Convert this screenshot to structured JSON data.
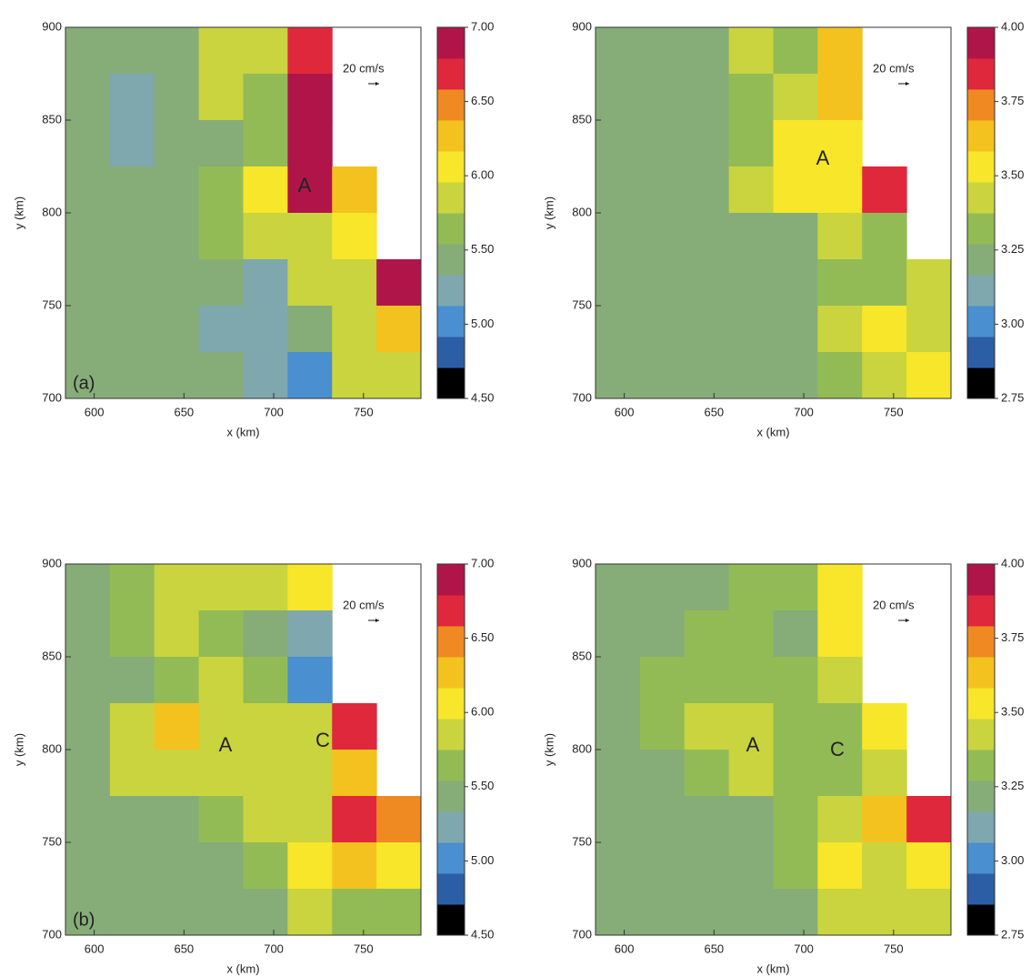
{
  "chart_data": [
    {
      "type": "contour",
      "panel_label": "(a)",
      "annotations": [
        "A"
      ],
      "reference": "20 cm/s",
      "xlabel": "x (km)",
      "ylabel": "y (km)",
      "xlim": [
        584,
        782
      ],
      "xticks": [
        600,
        650,
        700,
        750
      ],
      "ylim": [
        700,
        900
      ],
      "yticks": [
        700,
        750,
        800,
        850,
        900
      ],
      "z": [
        [
          5.4,
          5.5,
          5.5,
          5.9,
          5.8,
          6.7,
          null,
          null
        ],
        [
          5.5,
          5.3,
          5.4,
          5.9,
          5.7,
          6.8,
          null,
          null
        ],
        [
          5.5,
          5.3,
          5.5,
          5.5,
          5.6,
          6.8,
          null,
          null
        ],
        [
          5.4,
          5.5,
          5.5,
          5.6,
          6.1,
          6.8,
          6.3,
          null
        ],
        [
          5.5,
          5.5,
          5.4,
          5.6,
          5.9,
          5.8,
          6.1,
          null
        ],
        [
          5.5,
          5.5,
          5.5,
          5.4,
          5.3,
          5.9,
          5.8,
          6.8
        ],
        [
          5.5,
          5.5,
          5.5,
          5.3,
          5.2,
          5.5,
          5.9,
          6.2
        ],
        [
          5.5,
          5.5,
          5.5,
          5.4,
          5.3,
          5.1,
          5.9,
          5.9
        ]
      ],
      "colorbar": {
        "lim": [
          4.5,
          7
        ],
        "ticks": [
          {
            "value": 4.5,
            "label": "4.50"
          },
          {
            "value": 5,
            "label": "5.00"
          },
          {
            "value": 5.5,
            "label": "5.50"
          },
          {
            "value": 6,
            "label": "6.00"
          },
          {
            "value": 6.5,
            "label": "6.50"
          },
          {
            "value": 7,
            "label": "7.00"
          }
        ],
        "colors": [
          "#000000",
          "#2c5ea6",
          "#4a8fcf",
          "#7ea7ae",
          "#86ad78",
          "#93bb55",
          "#c9d43e",
          "#f7e629",
          "#f4c21e",
          "#ef8a22",
          "#e0283c",
          "#b0154a"
        ]
      }
    },
    {
      "type": "contour",
      "annotations": [
        "A"
      ],
      "reference": "20 cm/s",
      "xlabel": "x (km)",
      "ylabel": "y (km)",
      "xlim": [
        584,
        782
      ],
      "xticks": [
        600,
        650,
        700,
        750
      ],
      "ylim": [
        700,
        900
      ],
      "yticks": [
        700,
        750,
        800,
        850,
        900
      ],
      "z": [
        [
          3.2,
          3.2,
          3.2,
          3.4,
          3.3,
          3.6,
          null,
          null
        ],
        [
          3.2,
          3.2,
          3.2,
          3.3,
          3.4,
          3.6,
          null,
          null
        ],
        [
          3.2,
          3.2,
          3.2,
          3.3,
          3.5,
          3.5,
          null,
          null
        ],
        [
          3.2,
          3.2,
          3.2,
          3.4,
          3.5,
          3.5,
          3.8,
          null
        ],
        [
          3.2,
          3.2,
          3.2,
          3.2,
          3.2,
          3.4,
          3.3,
          null
        ],
        [
          3.2,
          3.2,
          3.2,
          3.2,
          3.2,
          3.3,
          3.3,
          3.4
        ],
        [
          3.2,
          3.2,
          3.2,
          3.2,
          3.2,
          3.4,
          3.5,
          3.4
        ],
        [
          3.2,
          3.2,
          3.2,
          3.2,
          3.2,
          3.3,
          3.4,
          3.5
        ]
      ],
      "colorbar": {
        "lim": [
          2.75,
          4
        ],
        "ticks": [
          {
            "value": 2.75,
            "label": "2.75"
          },
          {
            "value": 3,
            "label": "3.00"
          },
          {
            "value": 3.25,
            "label": "3.25"
          },
          {
            "value": 3.5,
            "label": "3.50"
          },
          {
            "value": 3.75,
            "label": "3.75"
          },
          {
            "value": 4,
            "label": "4.00"
          }
        ],
        "colors": [
          "#000000",
          "#2c5ea6",
          "#4a8fcf",
          "#7ea7ae",
          "#86ad78",
          "#93bb55",
          "#c9d43e",
          "#f7e629",
          "#f4c21e",
          "#ef8a22",
          "#e0283c",
          "#b0154a"
        ]
      }
    },
    {
      "type": "contour",
      "panel_label": "(b)",
      "annotations": [
        "A",
        "C"
      ],
      "reference": "20 cm/s",
      "xlabel": "x (km)",
      "ylabel": "y (km)",
      "xlim": [
        584,
        782
      ],
      "xticks": [
        600,
        650,
        700,
        750
      ],
      "ylim": [
        700,
        900
      ],
      "yticks": [
        700,
        750,
        800,
        850,
        900
      ],
      "z": [
        [
          5.5,
          5.6,
          5.8,
          5.8,
          5.8,
          6.0,
          null,
          null
        ],
        [
          5.4,
          5.7,
          5.8,
          5.6,
          5.5,
          5.3,
          null,
          null
        ],
        [
          5.5,
          5.4,
          5.6,
          5.8,
          5.6,
          5.0,
          null,
          null
        ],
        [
          5.5,
          5.9,
          6.2,
          5.9,
          5.8,
          5.8,
          6.7,
          null
        ],
        [
          5.5,
          5.8,
          5.9,
          5.9,
          5.8,
          5.9,
          6.3,
          null
        ],
        [
          5.5,
          5.5,
          5.5,
          5.6,
          5.8,
          5.9,
          6.7,
          6.5
        ],
        [
          5.5,
          5.5,
          5.5,
          5.5,
          5.6,
          6.0,
          6.3,
          6.0
        ],
        [
          5.5,
          5.5,
          5.5,
          5.5,
          5.4,
          5.8,
          5.7,
          5.6
        ]
      ],
      "colorbar": {
        "lim": [
          4.5,
          7
        ],
        "ticks": [
          {
            "value": 4.5,
            "label": "4.50"
          },
          {
            "value": 5,
            "label": "5.00"
          },
          {
            "value": 5.5,
            "label": "5.50"
          },
          {
            "value": 6,
            "label": "6.00"
          },
          {
            "value": 6.5,
            "label": "6.50"
          },
          {
            "value": 7,
            "label": "7.00"
          }
        ],
        "colors": [
          "#000000",
          "#2c5ea6",
          "#4a8fcf",
          "#7ea7ae",
          "#86ad78",
          "#93bb55",
          "#c9d43e",
          "#f7e629",
          "#f4c21e",
          "#ef8a22",
          "#e0283c",
          "#b0154a"
        ]
      }
    },
    {
      "type": "contour",
      "annotations": [
        "A",
        "C"
      ],
      "reference": "20 cm/s",
      "xlabel": "x (km)",
      "ylabel": "y (km)",
      "xlim": [
        584,
        782
      ],
      "xticks": [
        600,
        650,
        700,
        750
      ],
      "ylim": [
        700,
        900
      ],
      "yticks": [
        700,
        750,
        800,
        850,
        900
      ],
      "z": [
        [
          3.2,
          3.2,
          3.2,
          3.3,
          3.3,
          3.5,
          null,
          null
        ],
        [
          3.2,
          3.2,
          3.3,
          3.3,
          3.2,
          3.5,
          null,
          null
        ],
        [
          3.2,
          3.3,
          3.3,
          3.3,
          3.3,
          3.4,
          null,
          null
        ],
        [
          3.2,
          3.3,
          3.4,
          3.4,
          3.3,
          3.3,
          3.5,
          null
        ],
        [
          3.2,
          3.2,
          3.3,
          3.4,
          3.3,
          3.3,
          3.4,
          null
        ],
        [
          3.2,
          3.2,
          3.2,
          3.2,
          3.3,
          3.4,
          3.6,
          3.8
        ],
        [
          3.2,
          3.2,
          3.2,
          3.2,
          3.3,
          3.5,
          3.4,
          3.5
        ],
        [
          3.2,
          3.2,
          3.2,
          3.2,
          3.2,
          3.4,
          3.4,
          3.4
        ]
      ],
      "colorbar": {
        "lim": [
          2.75,
          4
        ],
        "ticks": [
          {
            "value": 2.75,
            "label": "2.75"
          },
          {
            "value": 3,
            "label": "3.00"
          },
          {
            "value": 3.25,
            "label": "3.25"
          },
          {
            "value": 3.5,
            "label": "3.50"
          },
          {
            "value": 3.75,
            "label": "3.75"
          },
          {
            "value": 4,
            "label": "4.00"
          }
        ],
        "colors": [
          "#000000",
          "#2c5ea6",
          "#4a8fcf",
          "#7ea7ae",
          "#86ad78",
          "#93bb55",
          "#c9d43e",
          "#f7e629",
          "#f4c21e",
          "#ef8a22",
          "#e0283c",
          "#b0154a"
        ]
      }
    }
  ]
}
